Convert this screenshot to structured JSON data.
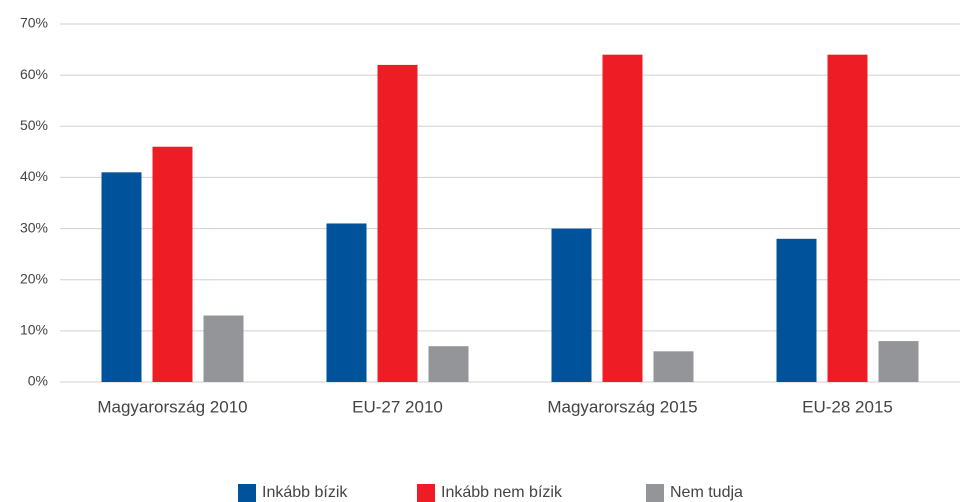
{
  "chart_data": {
    "type": "bar",
    "categories": [
      "Magyarország 2010",
      "EU-27 2010",
      "Magyarország 2015",
      "EU-28 2015"
    ],
    "series": [
      {
        "name": "Inkább bízik",
        "color": "#00539b",
        "values": [
          41,
          31,
          30,
          28
        ]
      },
      {
        "name": "Inkább nem bízik",
        "color": "#ee1c25",
        "values": [
          46,
          62,
          64,
          64
        ]
      },
      {
        "name": "Nem tudja",
        "color": "#939598",
        "values": [
          13,
          7,
          6,
          8
        ]
      }
    ],
    "ylim": [
      0,
      70
    ],
    "yticks": [
      {
        "value": 0,
        "label": "0%"
      },
      {
        "value": 10,
        "label": "10%"
      },
      {
        "value": 20,
        "label": "20%"
      },
      {
        "value": 30,
        "label": "30%"
      },
      {
        "value": 40,
        "label": "40%"
      },
      {
        "value": 50,
        "label": "50%"
      },
      {
        "value": 60,
        "label": "60%"
      },
      {
        "value": 70,
        "label": "70%"
      }
    ],
    "grid": true,
    "legend": "bottom"
  }
}
